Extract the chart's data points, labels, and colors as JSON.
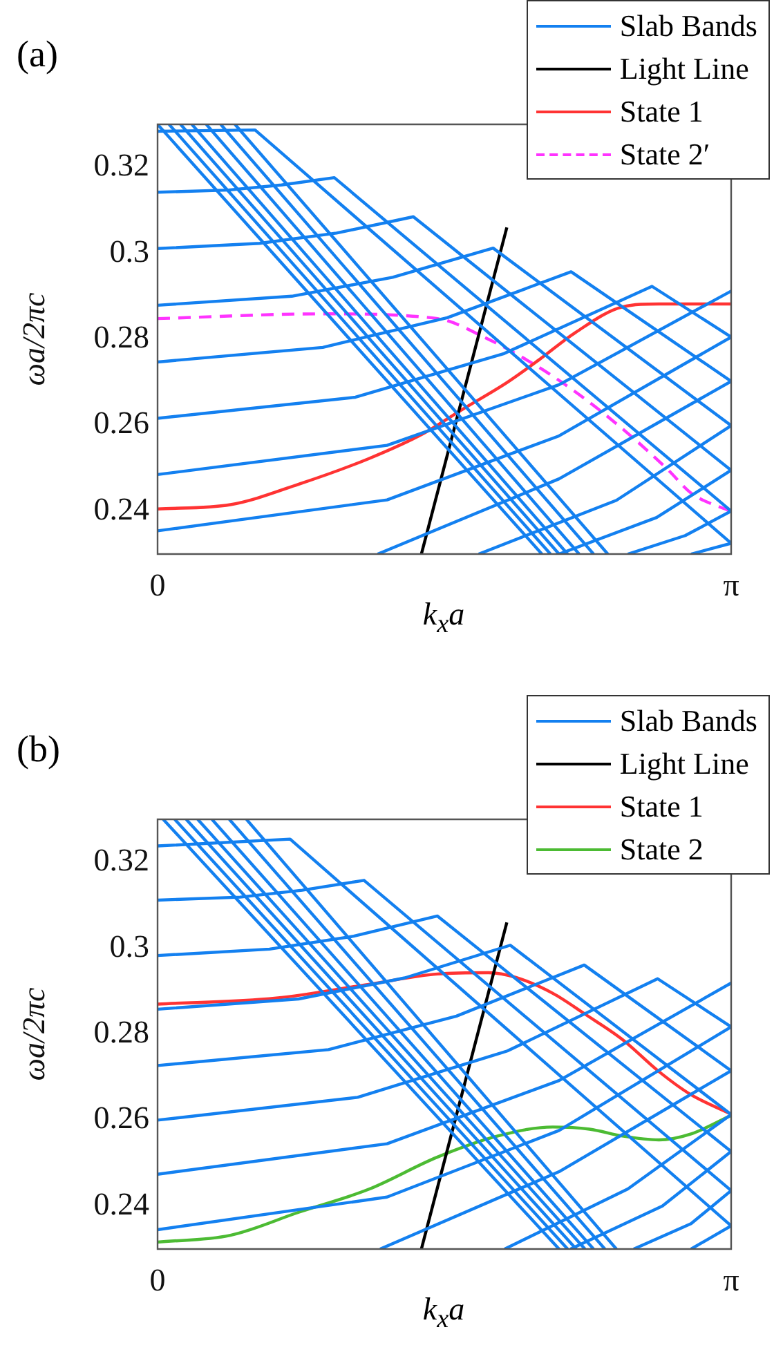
{
  "chart_data": [
    {
      "type": "line",
      "title": "(a)",
      "xlabel": "k$_{x}$a",
      "ylabel": "ωa/2πc",
      "xlim": [
        0,
        3.1416
      ],
      "xticks": [
        0,
        {
          "value": 3.1416,
          "label": "π"
        }
      ],
      "ylim": [
        0.23,
        0.33
      ],
      "yticks": [
        0.24,
        0.26,
        0.28,
        0.3,
        0.32
      ],
      "grid": false,
      "legend": "top right",
      "marker": "none",
      "series": [
        {
          "name": "Slab Bands",
          "color": "#1380f0",
          "x": [
            0,
            0.534,
            3.1416
          ],
          "values": [
            0.3284,
            0.3287,
            0.2325
          ]
        },
        {
          "color": "#1380f0",
          "x": [
            0,
            0.386,
            0.679,
            0.968,
            3.1416
          ],
          "values": [
            0.3142,
            0.3147,
            0.3159,
            0.3176,
            0.24
          ]
        },
        {
          "color": "#1380f0",
          "x": [
            0,
            0.559,
            0.98,
            1.401,
            3.1416
          ],
          "values": [
            0.3011,
            0.3023,
            0.3047,
            0.3085,
            0.2495
          ]
        },
        {
          "color": "#1380f0",
          "x": [
            0,
            0.735,
            1.288,
            1.838,
            3.1416
          ],
          "values": [
            0.2879,
            0.29,
            0.2944,
            0.3012,
            0.2599
          ]
        },
        {
          "color": "#1380f0",
          "x": [
            0,
            0.905,
            1.587,
            2.265,
            3.1416
          ],
          "values": [
            0.2747,
            0.2781,
            0.285,
            0.2957,
            0.2702
          ]
        },
        {
          "color": "#1380f0",
          "x": [
            0,
            1.084,
            1.894,
            2.708,
            3.1416
          ],
          "values": [
            0.2616,
            0.2665,
            0.2766,
            0.2923,
            0.2805
          ]
        },
        {
          "color": "#1380f0",
          "x": [
            0,
            1.257,
            2.199,
            3.1416
          ],
          "values": [
            0.2485,
            0.2553,
            0.2694,
            0.2912
          ]
        },
        {
          "color": "#1380f0",
          "x": [
            0,
            1.257,
            2.199,
            3.1416
          ],
          "values": [
            0.2354,
            0.2426,
            0.2575,
            0.2805
          ]
        },
        {
          "color": "#1380f0",
          "x": [
            1.206,
            2.199,
            3.1416
          ],
          "values": [
            0.23,
            0.2475,
            0.2702
          ]
        },
        {
          "color": "#1380f0",
          "x": [
            1.759,
            2.513,
            3.1416
          ],
          "values": [
            0.23,
            0.2425,
            0.2599
          ]
        },
        {
          "color": "#1380f0",
          "x": [
            2.199,
            2.733,
            3.1416
          ],
          "values": [
            0.23,
            0.2385,
            0.2495
          ]
        },
        {
          "color": "#1380f0",
          "x": [
            2.576,
            2.89,
            3.1416
          ],
          "values": [
            0.23,
            0.2343,
            0.24
          ]
        },
        {
          "color": "#1380f0",
          "x": [
            2.922,
            3.1416
          ],
          "values": [
            0.23,
            0.2325
          ]
        },
        {
          "color": "#1380f0",
          "x": [
            0,
            2.105
          ],
          "values": [
            0.33,
            0.23
          ]
        },
        {
          "color": "#1380f0",
          "x": [
            0.063,
            2.152
          ],
          "values": [
            0.33,
            0.23
          ]
        },
        {
          "color": "#1380f0",
          "x": [
            0.126,
            2.199
          ],
          "values": [
            0.33,
            0.23
          ]
        },
        {
          "color": "#1380f0",
          "x": [
            0.188,
            2.246
          ],
          "values": [
            0.33,
            0.23
          ]
        },
        {
          "color": "#1380f0",
          "x": [
            0.267,
            2.309
          ],
          "values": [
            0.33,
            0.23
          ]
        },
        {
          "color": "#1380f0",
          "x": [
            0.346,
            2.388
          ],
          "values": [
            0.33,
            0.23
          ]
        },
        {
          "color": "#1380f0",
          "x": [
            0.424,
            2.466
          ],
          "values": [
            0.33,
            0.23
          ]
        },
        {
          "name": "Light Line",
          "color": "#000000",
          "x": [
            1.445,
            1.913
          ],
          "values": [
            0.23,
            0.306
          ]
        },
        {
          "name": "State 1",
          "color": "#ff3333",
          "x": [
            0,
            0.399,
            0.776,
            1.156,
            1.458,
            1.659,
            1.913,
            2.089,
            2.29,
            2.545,
            2.746,
            3.1416
          ],
          "values": [
            0.2405,
            0.2415,
            0.2463,
            0.2522,
            0.2581,
            0.2634,
            0.2699,
            0.2752,
            0.2816,
            0.2875,
            0.2882,
            0.2882
          ]
        },
        {
          "name": "State 2′",
          "color": "#ff33ff",
          "line_style": "dashed",
          "x": [
            0,
            0.902,
            1.533,
            1.788,
            2.064,
            2.29,
            2.545,
            2.796,
            2.922,
            3.1416
          ],
          "values": [
            0.2848,
            0.2859,
            0.2848,
            0.2805,
            0.2741,
            0.2677,
            0.2592,
            0.2496,
            0.2442,
            0.2399
          ]
        }
      ]
    },
    {
      "type": "line",
      "title": "(b)",
      "xlabel": "k$_{x}$a",
      "ylabel": "ωa/2πc",
      "xlim": [
        0,
        3.1416
      ],
      "xticks": [
        0,
        {
          "value": 3.1416,
          "label": "π"
        }
      ],
      "ylim": [
        0.23,
        0.33
      ],
      "yticks": [
        0.24,
        0.26,
        0.28,
        0.3,
        0.32
      ],
      "grid": false,
      "legend": "top right",
      "marker": "none",
      "series": [
        {
          "name": "Slab Bands",
          "color": "#1380f0",
          "x": [
            0,
            0.726,
            3.1416
          ],
          "values": [
            0.3238,
            0.3254,
            0.2354
          ]
        },
        {
          "color": "#1380f0",
          "x": [
            0,
            0.452,
            0.792,
            1.131,
            3.1416
          ],
          "values": [
            0.3112,
            0.3119,
            0.3135,
            0.3158,
            0.2436
          ]
        },
        {
          "color": "#1380f0",
          "x": [
            0,
            0.613,
            1.074,
            1.533,
            3.1416
          ],
          "values": [
            0.2983,
            0.2998,
            0.3028,
            0.3075,
            0.2527
          ]
        },
        {
          "color": "#1380f0",
          "x": [
            0,
            0.773,
            1.354,
            1.932,
            3.1416
          ],
          "values": [
            0.2858,
            0.2882,
            0.2931,
            0.3007,
            0.2613
          ]
        },
        {
          "color": "#1380f0",
          "x": [
            0,
            0.936,
            1.637,
            2.337,
            3.1416
          ],
          "values": [
            0.2727,
            0.2764,
            0.2842,
            0.2961,
            0.2715
          ]
        },
        {
          "color": "#1380f0",
          "x": [
            0,
            1.096,
            1.916,
            2.739,
            3.1416
          ],
          "values": [
            0.26,
            0.2653,
            0.2761,
            0.2929,
            0.2817
          ]
        },
        {
          "color": "#1380f0",
          "x": [
            0,
            1.257,
            2.199,
            3.1416
          ],
          "values": [
            0.2474,
            0.2545,
            0.2692,
            0.2919
          ]
        },
        {
          "color": "#1380f0",
          "x": [
            0,
            1.257,
            2.199,
            3.1416
          ],
          "values": [
            0.2345,
            0.2421,
            0.2576,
            0.2817
          ]
        },
        {
          "color": "#1380f0",
          "x": [
            1.219,
            2.199,
            3.1416
          ],
          "values": [
            0.23,
            0.248,
            0.2715
          ]
        },
        {
          "color": "#1380f0",
          "x": [
            1.901,
            2.576,
            3.1416
          ],
          "values": [
            0.23,
            0.244,
            0.2613
          ]
        },
        {
          "color": "#1380f0",
          "x": [
            2.262,
            2.765,
            3.1416
          ],
          "values": [
            0.23,
            0.24,
            0.2527
          ]
        },
        {
          "color": "#1380f0",
          "x": [
            2.608,
            2.922,
            3.1416
          ],
          "values": [
            0.23,
            0.2359,
            0.2436
          ]
        },
        {
          "color": "#1380f0",
          "x": [
            2.922,
            3.1416
          ],
          "values": [
            0.23,
            0.2354
          ]
        },
        {
          "color": "#1380f0",
          "x": [
            0.031,
            2.199
          ],
          "values": [
            0.33,
            0.23
          ]
        },
        {
          "color": "#1380f0",
          "x": [
            0.094,
            2.246
          ],
          "values": [
            0.33,
            0.23
          ]
        },
        {
          "color": "#1380f0",
          "x": [
            0.157,
            2.293
          ],
          "values": [
            0.33,
            0.23
          ]
        },
        {
          "color": "#1380f0",
          "x": [
            0.22,
            2.341
          ],
          "values": [
            0.33,
            0.23
          ]
        },
        {
          "color": "#1380f0",
          "x": [
            0.298,
            2.388
          ],
          "values": [
            0.33,
            0.23
          ]
        },
        {
          "color": "#1380f0",
          "x": [
            0.393,
            2.45
          ],
          "values": [
            0.33,
            0.23
          ]
        },
        {
          "color": "#1380f0",
          "x": [
            0.487,
            2.513
          ],
          "values": [
            0.33,
            0.23
          ]
        },
        {
          "name": "Light Line",
          "color": "#000000",
          "x": [
            1.445,
            1.913
          ],
          "values": [
            0.23,
            0.306
          ]
        },
        {
          "name": "State 1",
          "color": "#ff3333",
          "x": [
            0,
            0.65,
            1.156,
            1.533,
            1.813,
            1.963,
            2.165,
            2.34,
            2.545,
            2.746,
            2.922,
            3.1416
          ],
          "values": [
            0.287,
            0.2884,
            0.2916,
            0.294,
            0.2943,
            0.2932,
            0.2895,
            0.2847,
            0.2788,
            0.2713,
            0.2659,
            0.2614
          ]
        },
        {
          "name": "State 2",
          "color": "#4cbb33",
          "x": [
            0,
            0.399,
            0.776,
            1.156,
            1.533,
            1.863,
            2.165,
            2.366,
            2.545,
            2.746,
            2.922,
            3.1416
          ],
          "values": [
            0.2316,
            0.2332,
            0.2386,
            0.2439,
            0.2514,
            0.2563,
            0.2584,
            0.2579,
            0.2563,
            0.2554,
            0.2568,
            0.2611
          ]
        }
      ]
    }
  ]
}
